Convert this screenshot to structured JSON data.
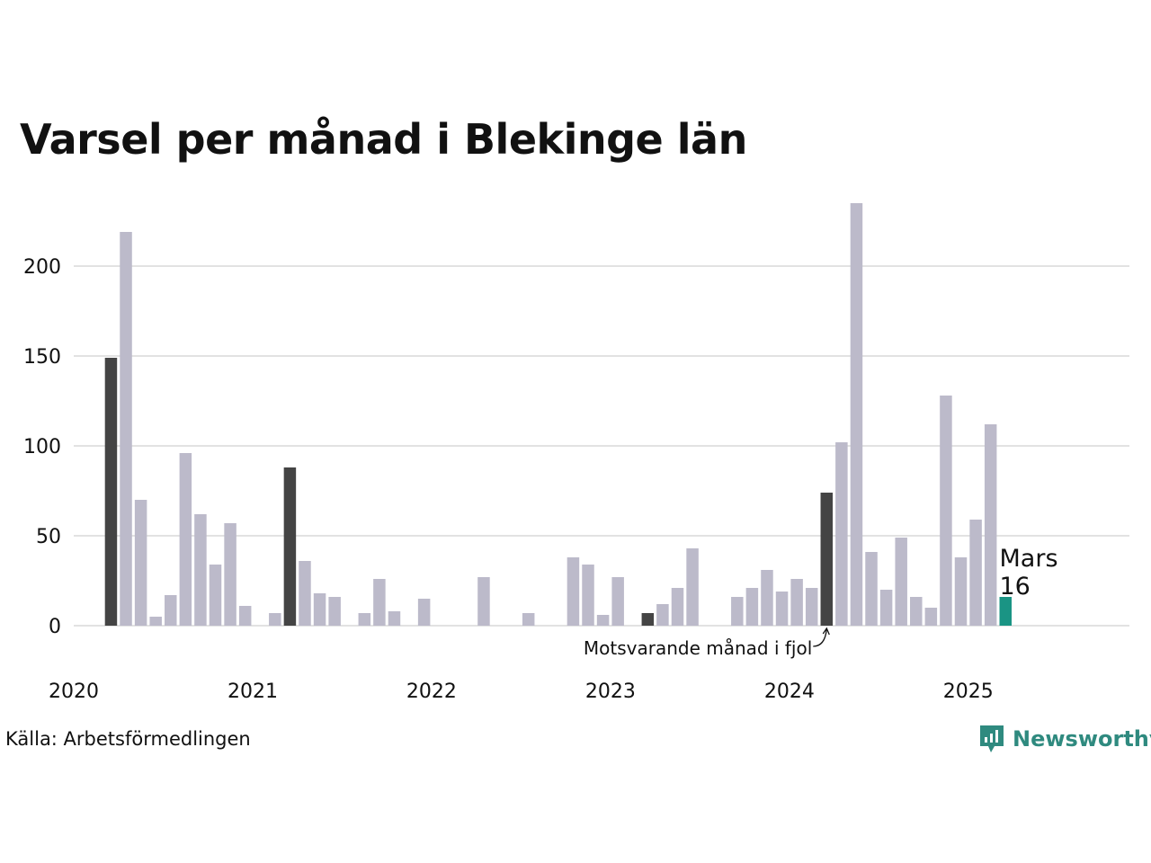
{
  "title": "Varsel per månad i Blekinge län",
  "source": "Källa: Arbetsförmedlingen",
  "brand": {
    "name": "Newsworthy",
    "icon": "newsworthy-logo-icon"
  },
  "colors": {
    "bar": "#bcbaca",
    "same_month": "#444444",
    "highlight": "#1a9484",
    "grid": "#e2e2e2",
    "brand": "#2f8a7f"
  },
  "chart_data": {
    "type": "bar",
    "title": "Varsel per månad i Blekinge län",
    "xlabel": "",
    "ylabel": "",
    "ylim": [
      0,
      235
    ],
    "yticks": [
      0,
      50,
      100,
      150,
      200
    ],
    "x_tick_labels": [
      "2020",
      "2021",
      "2022",
      "2023",
      "2024",
      "2025"
    ],
    "grid": true,
    "start_month": "2020-01",
    "months": [
      "2020-01",
      "2020-02",
      "2020-03",
      "2020-04",
      "2020-05",
      "2020-06",
      "2020-07",
      "2020-08",
      "2020-09",
      "2020-10",
      "2020-11",
      "2020-12",
      "2021-01",
      "2021-02",
      "2021-03",
      "2021-04",
      "2021-05",
      "2021-06",
      "2021-07",
      "2021-08",
      "2021-09",
      "2021-10",
      "2021-11",
      "2021-12",
      "2022-01",
      "2022-02",
      "2022-03",
      "2022-04",
      "2022-05",
      "2022-06",
      "2022-07",
      "2022-08",
      "2022-09",
      "2022-10",
      "2022-11",
      "2022-12",
      "2023-01",
      "2023-02",
      "2023-03",
      "2023-04",
      "2023-05",
      "2023-06",
      "2023-07",
      "2023-08",
      "2023-09",
      "2023-10",
      "2023-11",
      "2023-12",
      "2024-01",
      "2024-02",
      "2024-03",
      "2024-04",
      "2024-05",
      "2024-06",
      "2024-07",
      "2024-08",
      "2024-09",
      "2024-10",
      "2024-11",
      "2024-12",
      "2025-01",
      "2025-02",
      "2025-03"
    ],
    "values": [
      0,
      0,
      149,
      219,
      70,
      5,
      17,
      96,
      62,
      34,
      57,
      11,
      0,
      7,
      88,
      36,
      18,
      16,
      0,
      7,
      26,
      8,
      0,
      15,
      0,
      0,
      0,
      27,
      0,
      0,
      7,
      0,
      0,
      38,
      34,
      6,
      27,
      0,
      7,
      12,
      21,
      43,
      0,
      0,
      16,
      21,
      31,
      19,
      26,
      21,
      74,
      102,
      235,
      41,
      20,
      49,
      16,
      10,
      128,
      38,
      59,
      112,
      16
    ],
    "same_month_dates": [
      "2020-03",
      "2021-03",
      "2023-03",
      "2024-03"
    ],
    "highlight": {
      "date": "2025-03",
      "label": "Mars",
      "value": "16"
    },
    "annotation": "Motsvarande månad i fjol"
  }
}
